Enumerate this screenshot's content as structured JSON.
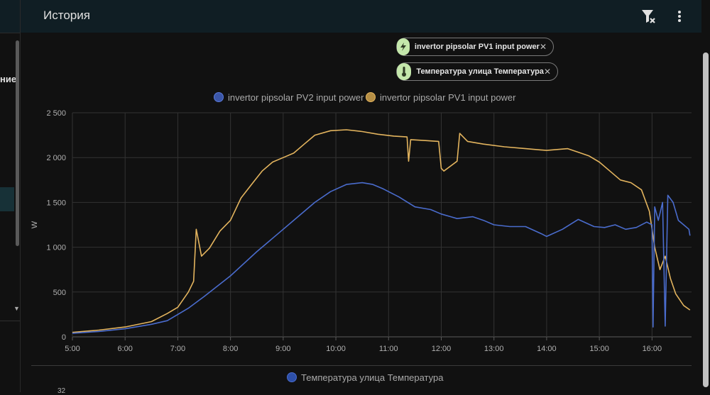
{
  "header": {
    "title": "История"
  },
  "sidebar": {
    "fragment_text": "ние"
  },
  "chips": [
    {
      "label": "invertor pipsolar PV1 input power",
      "icon": "lightning-icon"
    },
    {
      "label": "Температура улица Температура",
      "icon": "thermometer-icon"
    }
  ],
  "colors": {
    "pv2": "#4a6ccd",
    "pv1": "#e3b45e",
    "temp": "#2d4fa8",
    "chip_bg": "#c4e7ab"
  },
  "chart_data": {
    "type": "line",
    "title": "",
    "ylabel": "W",
    "xlabel": "",
    "ylim": [
      0,
      2500
    ],
    "xlim": [
      5.0,
      16.75
    ],
    "yticks": [
      "0",
      "500",
      "1 000",
      "1 500",
      "2 000",
      "2 500"
    ],
    "ytick_values": [
      0,
      500,
      1000,
      1500,
      2000,
      2500
    ],
    "xticks": [
      "5:00",
      "6:00",
      "7:00",
      "8:00",
      "9:00",
      "10:00",
      "11:00",
      "12:00",
      "13:00",
      "14:00",
      "15:00",
      "16:00"
    ],
    "xtick_values": [
      5,
      6,
      7,
      8,
      9,
      10,
      11,
      12,
      13,
      14,
      15,
      16
    ],
    "series": [
      {
        "name": "invertor pipsolar PV2 input power",
        "color": "#4a6ccd",
        "points": [
          [
            5.0,
            40
          ],
          [
            5.5,
            60
          ],
          [
            6.0,
            90
          ],
          [
            6.5,
            140
          ],
          [
            6.8,
            180
          ],
          [
            7.0,
            250
          ],
          [
            7.2,
            320
          ],
          [
            7.5,
            450
          ],
          [
            8.0,
            680
          ],
          [
            8.5,
            950
          ],
          [
            9.0,
            1200
          ],
          [
            9.3,
            1350
          ],
          [
            9.6,
            1500
          ],
          [
            9.9,
            1620
          ],
          [
            10.2,
            1700
          ],
          [
            10.5,
            1720
          ],
          [
            10.7,
            1700
          ],
          [
            10.9,
            1650
          ],
          [
            11.2,
            1560
          ],
          [
            11.5,
            1450
          ],
          [
            11.8,
            1420
          ],
          [
            12.0,
            1370
          ],
          [
            12.3,
            1320
          ],
          [
            12.6,
            1340
          ],
          [
            12.8,
            1300
          ],
          [
            13.0,
            1250
          ],
          [
            13.3,
            1230
          ],
          [
            13.6,
            1230
          ],
          [
            13.9,
            1150
          ],
          [
            14.0,
            1120
          ],
          [
            14.3,
            1200
          ],
          [
            14.6,
            1310
          ],
          [
            14.9,
            1230
          ],
          [
            15.1,
            1220
          ],
          [
            15.3,
            1250
          ],
          [
            15.5,
            1200
          ],
          [
            15.7,
            1220
          ],
          [
            15.9,
            1280
          ],
          [
            16.0,
            1250
          ],
          [
            16.02,
            110
          ],
          [
            16.05,
            1450
          ],
          [
            16.12,
            1300
          ],
          [
            16.2,
            1500
          ],
          [
            16.25,
            120
          ],
          [
            16.3,
            1580
          ],
          [
            16.4,
            1500
          ],
          [
            16.5,
            1300
          ],
          [
            16.6,
            1250
          ],
          [
            16.7,
            1200
          ],
          [
            16.72,
            1130
          ]
        ]
      },
      {
        "name": "invertor pipsolar PV1 input power",
        "color": "#e3b45e",
        "points": [
          [
            5.0,
            50
          ],
          [
            5.5,
            75
          ],
          [
            6.0,
            110
          ],
          [
            6.5,
            170
          ],
          [
            6.8,
            260
          ],
          [
            7.0,
            330
          ],
          [
            7.2,
            500
          ],
          [
            7.3,
            620
          ],
          [
            7.35,
            1200
          ],
          [
            7.45,
            900
          ],
          [
            7.6,
            990
          ],
          [
            7.8,
            1180
          ],
          [
            8.0,
            1300
          ],
          [
            8.2,
            1550
          ],
          [
            8.4,
            1700
          ],
          [
            8.6,
            1850
          ],
          [
            8.8,
            1950
          ],
          [
            9.0,
            2000
          ],
          [
            9.2,
            2050
          ],
          [
            9.4,
            2150
          ],
          [
            9.6,
            2250
          ],
          [
            9.9,
            2300
          ],
          [
            10.2,
            2310
          ],
          [
            10.5,
            2290
          ],
          [
            10.8,
            2260
          ],
          [
            11.1,
            2240
          ],
          [
            11.35,
            2230
          ],
          [
            11.38,
            1960
          ],
          [
            11.42,
            2200
          ],
          [
            11.7,
            2190
          ],
          [
            11.95,
            2180
          ],
          [
            12.0,
            1880
          ],
          [
            12.05,
            1850
          ],
          [
            12.3,
            1960
          ],
          [
            12.35,
            2270
          ],
          [
            12.5,
            2180
          ],
          [
            12.8,
            2150
          ],
          [
            13.2,
            2120
          ],
          [
            13.6,
            2100
          ],
          [
            14.0,
            2080
          ],
          [
            14.4,
            2100
          ],
          [
            14.6,
            2060
          ],
          [
            14.8,
            2020
          ],
          [
            15.0,
            1950
          ],
          [
            15.2,
            1850
          ],
          [
            15.4,
            1750
          ],
          [
            15.6,
            1720
          ],
          [
            15.8,
            1640
          ],
          [
            15.95,
            1400
          ],
          [
            16.05,
            1000
          ],
          [
            16.15,
            750
          ],
          [
            16.25,
            900
          ],
          [
            16.35,
            650
          ],
          [
            16.45,
            480
          ],
          [
            16.6,
            350
          ],
          [
            16.72,
            300
          ]
        ]
      }
    ]
  },
  "second_chart": {
    "legend": "Температура улица Температура",
    "first_ytick": "32"
  }
}
